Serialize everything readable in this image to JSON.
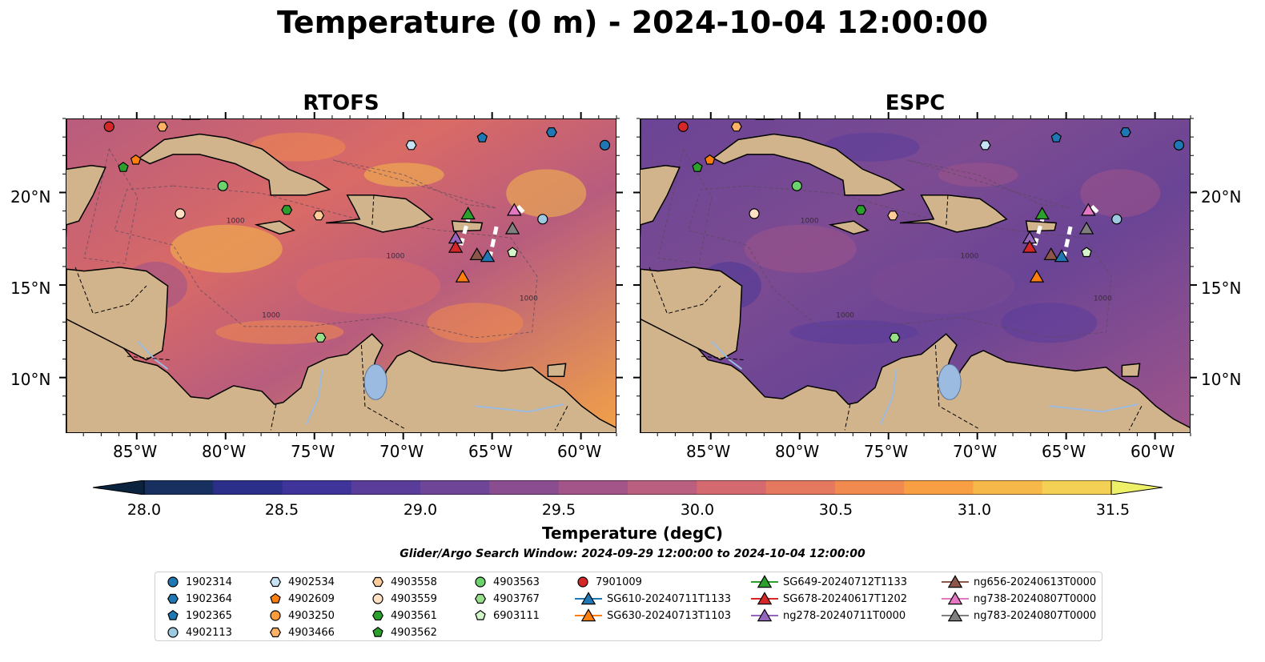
{
  "title": "Temperature (0 m) - 2024-10-04 12:00:00",
  "panels": [
    {
      "name": "RTOFS",
      "color_hot": "#f28b42"
    },
    {
      "name": "ESPC",
      "color_hot": "#7b4fa0"
    }
  ],
  "map": {
    "lon_range": [
      -89,
      -58
    ],
    "lat_range": [
      7,
      24
    ],
    "x_tick_labels": [
      "85°W",
      "80°W",
      "75°W",
      "70°W",
      "65°W",
      "60°W"
    ],
    "y_tick_labels": [
      "20°N",
      "15°N",
      "10°N"
    ],
    "land_color": "#d2b48c",
    "bathymetry_contour_label": "1000"
  },
  "colorbar": {
    "label": "Temperature (degC)",
    "ticks": [
      "28.0",
      "28.5",
      "29.0",
      "29.5",
      "30.0",
      "30.5",
      "31.0",
      "31.5"
    ],
    "range": [
      28.0,
      31.75
    ],
    "colors": [
      "#0c2340",
      "#17305f",
      "#2b2f8a",
      "#3f349a",
      "#5a3c9b",
      "#6f4597",
      "#8a4d8f",
      "#a3558a",
      "#bb5f80",
      "#d46a6f",
      "#e4795f",
      "#f08a4f",
      "#f89f43",
      "#f7b84a",
      "#f4d154",
      "#eef068"
    ]
  },
  "search_window": "Glider/Argo Search Window: 2024-09-29 12:00:00 to 2024-10-04 12:00:00",
  "legend": [
    {
      "label": "1902314",
      "marker": "circle",
      "color": "#1f77b4"
    },
    {
      "label": "1902364",
      "marker": "hexagon",
      "color": "#1f77b4"
    },
    {
      "label": "1902365",
      "marker": "pentagon",
      "color": "#1f77b4"
    },
    {
      "label": "4902113",
      "marker": "circle",
      "color": "#9ecae1"
    },
    {
      "label": "4902534",
      "marker": "hexagon",
      "color": "#c6e2f5"
    },
    {
      "label": "4902609",
      "marker": "pentagon",
      "color": "#ff7f0e"
    },
    {
      "label": "4903250",
      "marker": "circle",
      "color": "#ff9d3d"
    },
    {
      "label": "4903466",
      "marker": "hexagon",
      "color": "#ffb266"
    },
    {
      "label": "4903558",
      "marker": "hexagon",
      "color": "#ffcc99"
    },
    {
      "label": "4903559",
      "marker": "circle",
      "color": "#ffe0c2"
    },
    {
      "label": "4903561",
      "marker": "hexagon",
      "color": "#2ca02c"
    },
    {
      "label": "4903562",
      "marker": "pentagon",
      "color": "#2ca02c"
    },
    {
      "label": "4903563",
      "marker": "circle",
      "color": "#6cd36c"
    },
    {
      "label": "4903767",
      "marker": "hexagon",
      "color": "#98df8a"
    },
    {
      "label": "6903111",
      "marker": "pentagon",
      "color": "#d4f5c9"
    },
    {
      "label": "7901009",
      "marker": "circle",
      "color": "#d62728"
    },
    {
      "label": "SG610-20240711T1133",
      "marker": "triangle",
      "color": "#1f77b4"
    },
    {
      "label": "SG630-20240713T1103",
      "marker": "triangle",
      "color": "#ff7f0e"
    },
    {
      "label": "SG649-20240712T1133",
      "marker": "triangle",
      "color": "#2ca02c"
    },
    {
      "label": "SG678-20240617T1202",
      "marker": "triangle",
      "color": "#d62728"
    },
    {
      "label": "ng278-20240711T0000",
      "marker": "triangle",
      "color": "#9467bd"
    },
    {
      "label": "ng656-20240613T0000",
      "marker": "triangle",
      "color": "#8c564b"
    },
    {
      "label": "ng738-20240807T0000",
      "marker": "triangle",
      "color": "#e377c2"
    },
    {
      "label": "ng783-20240807T0000",
      "marker": "triangle",
      "color": "#7f7f7f"
    }
  ],
  "platforms": [
    {
      "label": "7901009",
      "lon": -86.6,
      "lat": 23.6
    },
    {
      "label": "4903466",
      "lon": -83.6,
      "lat": 23.6
    },
    {
      "label": "4902534",
      "lon": -69.6,
      "lat": 22.6
    },
    {
      "label": "1902365",
      "lon": -65.6,
      "lat": 23.0
    },
    {
      "label": "1902364",
      "lon": -61.7,
      "lat": 23.3
    },
    {
      "label": "1902314",
      "lon": -58.7,
      "lat": 22.6
    },
    {
      "label": "4903562",
      "lon": -85.8,
      "lat": 21.4
    },
    {
      "label": "4902609",
      "lon": -85.1,
      "lat": 21.8
    },
    {
      "label": "4903563",
      "lon": -80.2,
      "lat": 20.4
    },
    {
      "label": "4903559",
      "lon": -82.6,
      "lat": 18.9
    },
    {
      "label": "4903561",
      "lon": -76.6,
      "lat": 19.1
    },
    {
      "label": "4903558",
      "lon": -74.8,
      "lat": 18.8
    },
    {
      "label": "SG649-20240712T1133",
      "lon": -66.4,
      "lat": 18.9
    },
    {
      "label": "ng738-20240807T0000",
      "lon": -63.8,
      "lat": 19.1
    },
    {
      "label": "4902113",
      "lon": -62.2,
      "lat": 18.6
    },
    {
      "label": "ng783-20240807T0000",
      "lon": -63.9,
      "lat": 18.1
    },
    {
      "label": "ng278-20240711T0000",
      "lon": -67.1,
      "lat": 17.6
    },
    {
      "label": "SG678-20240617T1202",
      "lon": -67.1,
      "lat": 17.1
    },
    {
      "label": "ng656-20240613T0000",
      "lon": -65.9,
      "lat": 16.7
    },
    {
      "label": "SG610-20240711T1133",
      "lon": -65.3,
      "lat": 16.6
    },
    {
      "label": "6903111",
      "lon": -63.9,
      "lat": 16.8
    },
    {
      "label": "SG630-20240713T1103",
      "lon": -66.7,
      "lat": 15.5
    },
    {
      "label": "4903767",
      "lon": -74.7,
      "lat": 12.2
    }
  ]
}
